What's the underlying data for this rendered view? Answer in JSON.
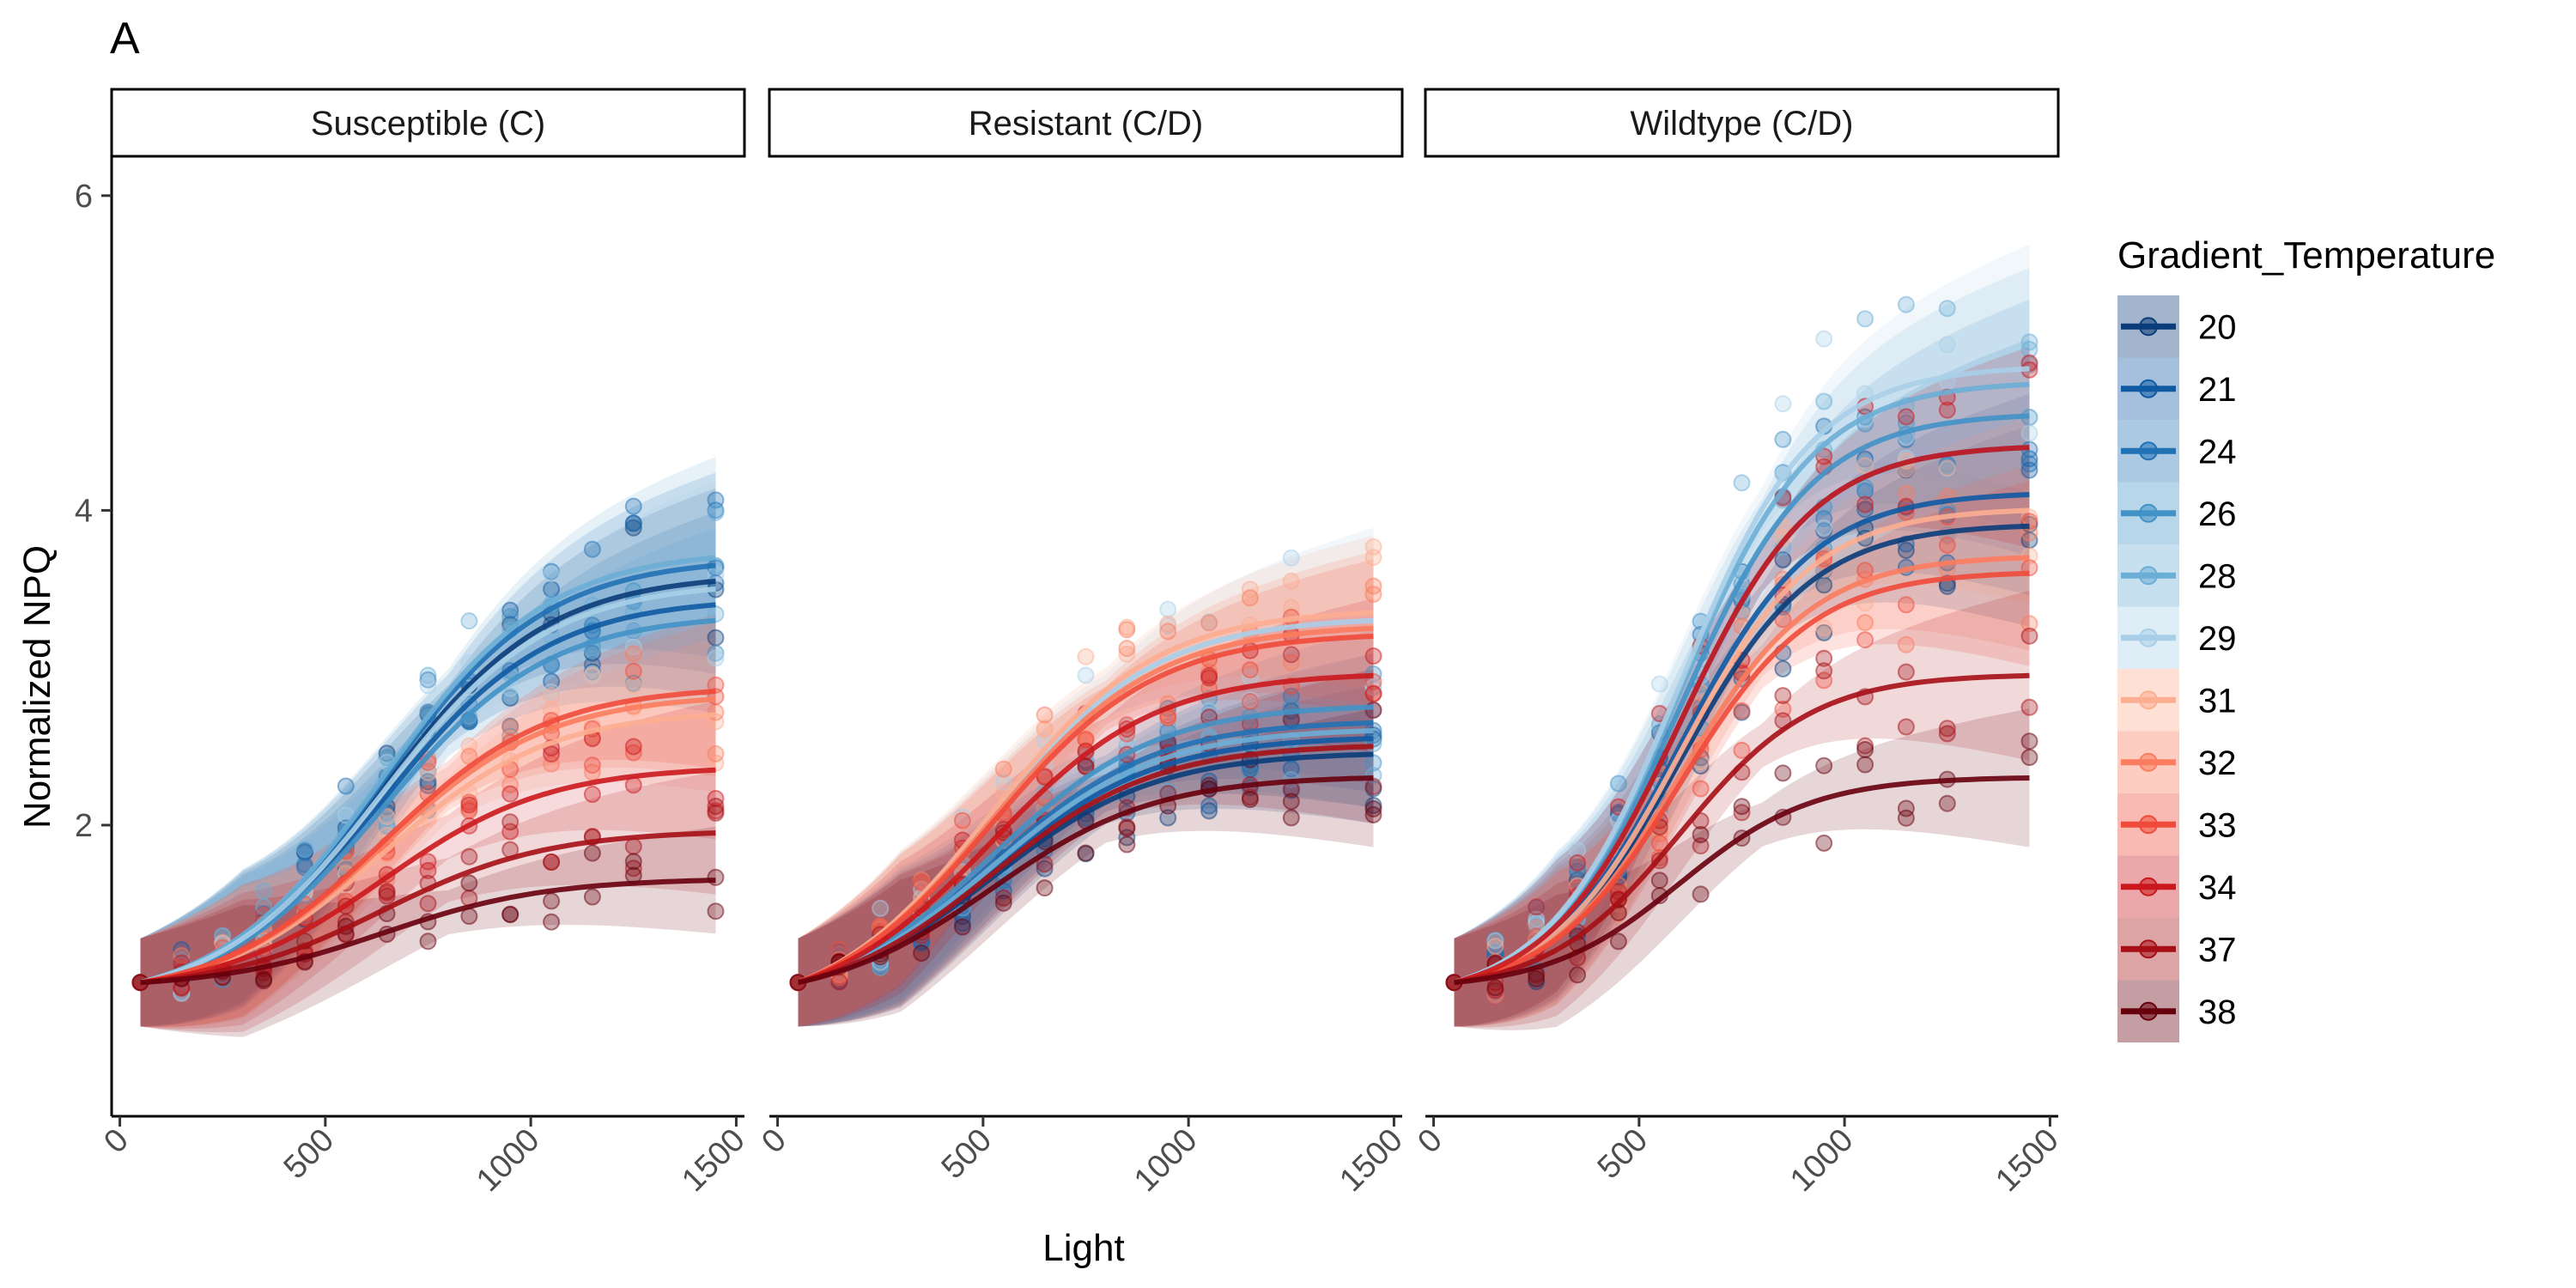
{
  "figure_label": "A",
  "chart_data": {
    "type": "line",
    "description_type": "scatter with smoothed trend lines and confidence bands, faceted",
    "xlabel": "Light",
    "ylabel": "Normalized NPQ",
    "xlim": [
      -20,
      1520
    ],
    "ylim": [
      0.15,
      6.25
    ],
    "x_ticks": [
      0,
      500,
      1000,
      1500
    ],
    "x_tick_labels": [
      "0",
      "500",
      "1000",
      "1500"
    ],
    "y_ticks": [
      2,
      4,
      6
    ],
    "y_tick_labels": [
      "2",
      "4",
      "6"
    ],
    "x_light_levels": [
      50,
      150,
      250,
      350,
      450,
      550,
      650,
      750,
      850,
      950,
      1050,
      1150,
      1250,
      1450
    ],
    "legend": {
      "title": "Gradient_Temperature",
      "entries": [
        "20",
        "21",
        "24",
        "26",
        "28",
        "29",
        "31",
        "32",
        "33",
        "34",
        "37",
        "38"
      ],
      "placement": "right"
    },
    "series_colors": {
      "20": "#0b3d7a",
      "21": "#0f5aa3",
      "24": "#2171b5",
      "26": "#4292c6",
      "28": "#6baed6",
      "29": "#a9cfe8",
      "31": "#fcae91",
      "32": "#fb7c5e",
      "33": "#f04a3a",
      "34": "#cb181d",
      "37": "#a50f15",
      "38": "#67000d"
    },
    "panels": [
      {
        "title": "Susceptible (C)",
        "series": [
          {
            "name": "20",
            "peak": 3.55,
            "spread": 0.45
          },
          {
            "name": "21",
            "peak": 3.4,
            "spread": 0.45
          },
          {
            "name": "24",
            "peak": 3.65,
            "spread": 0.45
          },
          {
            "name": "26",
            "peak": 3.3,
            "spread": 0.45
          },
          {
            "name": "28",
            "peak": 3.7,
            "spread": 0.5
          },
          {
            "name": "29",
            "peak": 3.5,
            "spread": 0.55
          },
          {
            "name": "31",
            "peak": 2.7,
            "spread": 0.35
          },
          {
            "name": "32",
            "peak": 2.8,
            "spread": 0.35
          },
          {
            "name": "33",
            "peak": 2.85,
            "spread": 0.35
          },
          {
            "name": "34",
            "peak": 2.35,
            "spread": 0.3
          },
          {
            "name": "37",
            "peak": 1.95,
            "spread": 0.25
          },
          {
            "name": "38",
            "peak": 1.65,
            "spread": 0.2
          }
        ]
      },
      {
        "title": "Resistant (C/D)",
        "series": [
          {
            "name": "20",
            "peak": 2.45,
            "spread": 0.3
          },
          {
            "name": "21",
            "peak": 2.55,
            "spread": 0.3
          },
          {
            "name": "24",
            "peak": 2.65,
            "spread": 0.3
          },
          {
            "name": "26",
            "peak": 2.75,
            "spread": 0.35
          },
          {
            "name": "28",
            "peak": 2.6,
            "spread": 0.35
          },
          {
            "name": "29",
            "peak": 3.3,
            "spread": 0.45
          },
          {
            "name": "31",
            "peak": 3.35,
            "spread": 0.35
          },
          {
            "name": "32",
            "peak": 3.25,
            "spread": 0.35
          },
          {
            "name": "33",
            "peak": 3.2,
            "spread": 0.35
          },
          {
            "name": "34",
            "peak": 2.95,
            "spread": 0.35
          },
          {
            "name": "37",
            "peak": 2.5,
            "spread": 0.35
          },
          {
            "name": "38",
            "peak": 2.3,
            "spread": 0.3
          }
        ]
      },
      {
        "title": "Wildtype (C/D)",
        "series": [
          {
            "name": "20",
            "peak": 3.9,
            "spread": 0.5
          },
          {
            "name": "21",
            "peak": 4.1,
            "spread": 0.5
          },
          {
            "name": "24",
            "peak": 4.4,
            "spread": 0.55
          },
          {
            "name": "26",
            "peak": 4.6,
            "spread": 0.6
          },
          {
            "name": "28",
            "peak": 4.8,
            "spread": 0.6
          },
          {
            "name": "29",
            "peak": 4.9,
            "spread": 0.65
          },
          {
            "name": "31",
            "peak": 4.0,
            "spread": 0.45
          },
          {
            "name": "32",
            "peak": 3.7,
            "spread": 0.45
          },
          {
            "name": "33",
            "peak": 3.6,
            "spread": 0.45
          },
          {
            "name": "34",
            "peak": 4.4,
            "spread": 0.5
          },
          {
            "name": "37",
            "peak": 2.95,
            "spread": 0.4
          },
          {
            "name": "38",
            "peak": 2.3,
            "spread": 0.3
          }
        ]
      }
    ]
  }
}
